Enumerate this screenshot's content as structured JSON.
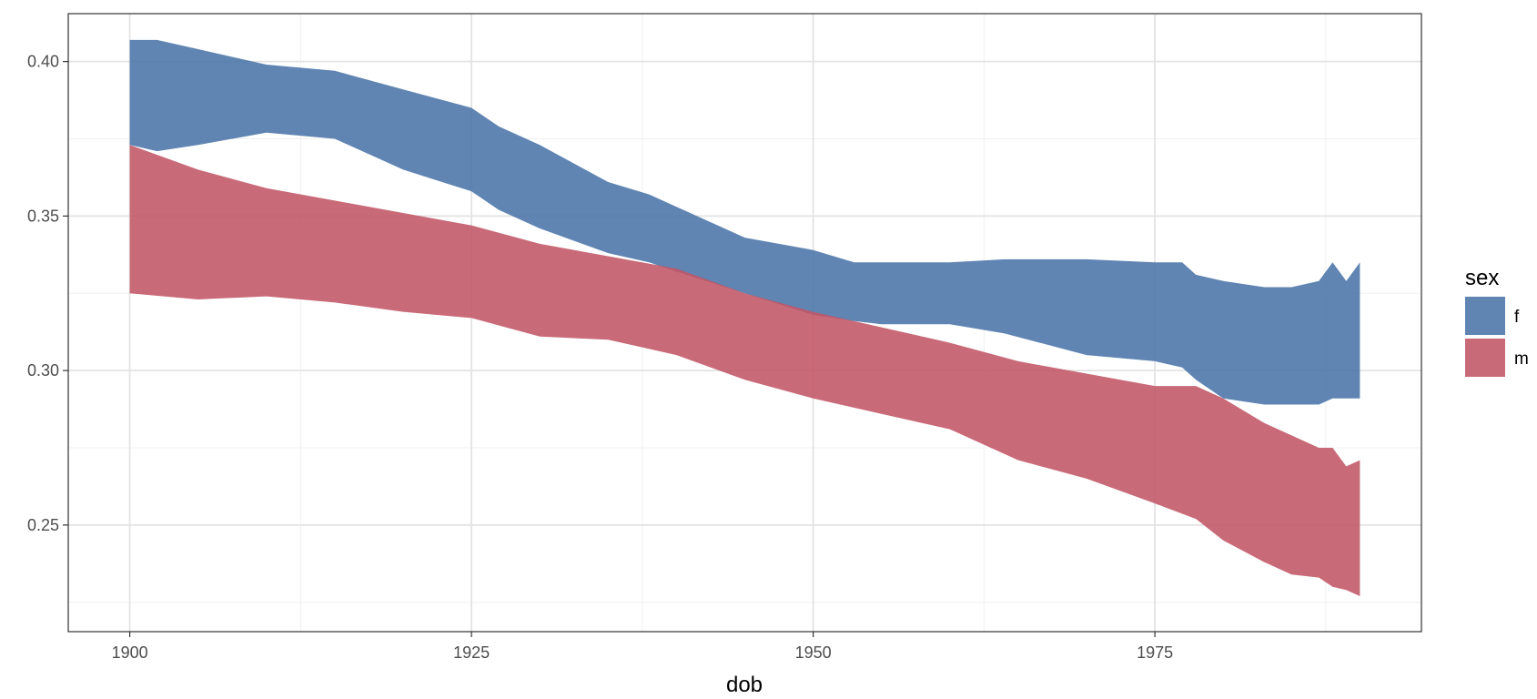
{
  "chart_data": {
    "type": "area",
    "title": "",
    "xlabel": "dob",
    "ylabel": "",
    "xlim": [
      1895.5,
      1994.5
    ],
    "ylim": [
      0.2155,
      0.4155
    ],
    "x_ticks": [
      1900,
      1925,
      1950,
      1975
    ],
    "x_tick_labels": [
      "1900",
      "1925",
      "1950",
      "1975"
    ],
    "y_ticks": [
      0.25,
      0.3,
      0.35,
      0.4
    ],
    "y_tick_labels": [
      "0.25",
      "0.30",
      "0.35",
      "0.40"
    ],
    "grid": true,
    "legend": {
      "title": "sex",
      "position": "right"
    },
    "series": [
      {
        "name": "f",
        "color": "#4a74a8",
        "x": [
          1900,
          1902,
          1905,
          1910,
          1915,
          1920,
          1925,
          1927,
          1930,
          1935,
          1938,
          1940,
          1945,
          1950,
          1953,
          1955,
          1960,
          1964,
          1970,
          1975,
          1977,
          1978,
          1980,
          1983,
          1985,
          1987,
          1988,
          1989,
          1990
        ],
        "upper": [
          0.407,
          0.407,
          0.404,
          0.399,
          0.397,
          0.391,
          0.385,
          0.379,
          0.373,
          0.361,
          0.357,
          0.353,
          0.343,
          0.339,
          0.335,
          0.335,
          0.335,
          0.336,
          0.336,
          0.335,
          0.335,
          0.331,
          0.329,
          0.327,
          0.327,
          0.329,
          0.335,
          0.329,
          0.335
        ],
        "lower": [
          0.373,
          0.371,
          0.373,
          0.377,
          0.375,
          0.365,
          0.358,
          0.352,
          0.346,
          0.338,
          0.335,
          0.332,
          0.325,
          0.318,
          0.316,
          0.315,
          0.315,
          0.312,
          0.305,
          0.303,
          0.301,
          0.297,
          0.291,
          0.289,
          0.289,
          0.289,
          0.291,
          0.291,
          0.291
        ]
      },
      {
        "name": "m",
        "color": "#c25565",
        "x": [
          1900,
          1905,
          1910,
          1915,
          1920,
          1925,
          1930,
          1935,
          1940,
          1945,
          1950,
          1955,
          1960,
          1965,
          1970,
          1975,
          1978,
          1980,
          1983,
          1985,
          1987,
          1988,
          1989,
          1990
        ],
        "upper": [
          0.373,
          0.365,
          0.359,
          0.355,
          0.351,
          0.347,
          0.341,
          0.337,
          0.333,
          0.325,
          0.319,
          0.314,
          0.309,
          0.303,
          0.299,
          0.295,
          0.295,
          0.291,
          0.283,
          0.279,
          0.275,
          0.275,
          0.269,
          0.271
        ],
        "lower": [
          0.325,
          0.323,
          0.324,
          0.322,
          0.319,
          0.317,
          0.311,
          0.31,
          0.305,
          0.297,
          0.291,
          0.286,
          0.281,
          0.271,
          0.265,
          0.257,
          0.252,
          0.245,
          0.238,
          0.234,
          0.233,
          0.23,
          0.229,
          0.227
        ]
      }
    ]
  }
}
